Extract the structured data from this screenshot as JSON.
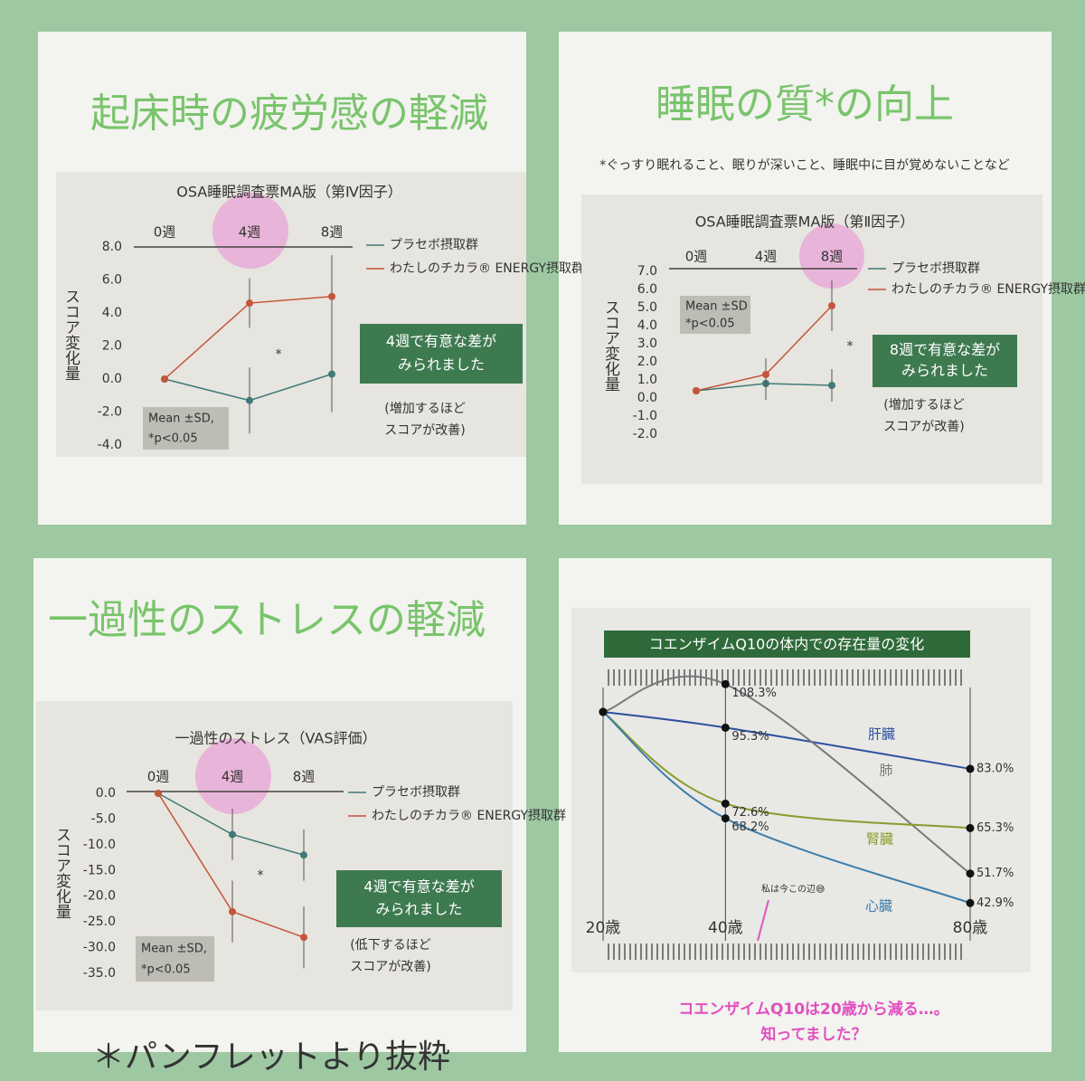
{
  "chart_data": [
    {
      "type": "line",
      "panel_title": "起床時の疲労感の軽減",
      "title": "OSA睡眠調査票MA版（第Ⅳ因子）",
      "categories": [
        "0週",
        "4週",
        "8週"
      ],
      "ylabel": "スコア変化量",
      "ylim": [
        -4,
        8
      ],
      "yticks": [
        {
          "value": 8,
          "label": "8.0"
        },
        {
          "value": 6,
          "label": "6.0"
        },
        {
          "value": 4,
          "label": "4.0"
        },
        {
          "value": 2,
          "label": "2.0"
        },
        {
          "value": 0,
          "label": "0.0"
        },
        {
          "value": -2,
          "label": "-2.0"
        },
        {
          "value": -4,
          "label": "-4.0"
        }
      ],
      "series": [
        {
          "name": "プラセボ摂取群",
          "color": "#3f7a78",
          "values": [
            0,
            -1.3,
            0.3
          ],
          "errors": [
            0,
            2,
            2.3
          ]
        },
        {
          "name": "わたしのチカラ® ENERGY摂取群",
          "color": "#c4553a",
          "values": [
            0,
            4.6,
            5
          ],
          "errors": [
            0,
            1.5,
            2.5
          ]
        }
      ],
      "significance": [
        "4週で有意な差が",
        "みられました"
      ],
      "note": [
        "(増加するほど",
        "スコアが改善)"
      ],
      "stats": [
        "Mean ±SD,",
        "*p<0.05"
      ],
      "star": "*"
    },
    {
      "type": "line",
      "panel_title": "睡眠の質*の向上",
      "subtitle": "*ぐっすり眠れること、眠りが深いこと、睡眠中に目が覚めないことなど",
      "title": "OSA睡眠調査票MA版（第Ⅱ因子）",
      "categories": [
        "0週",
        "4週",
        "8週"
      ],
      "ylabel": "スコア変化量",
      "ylim": [
        -2,
        7
      ],
      "yticks": [
        {
          "value": 7,
          "label": "7.0"
        },
        {
          "value": 6,
          "label": "6.0"
        },
        {
          "value": 5,
          "label": "5.0"
        },
        {
          "value": 4,
          "label": "4.0"
        },
        {
          "value": 3,
          "label": "3.0"
        },
        {
          "value": 2,
          "label": "2.0"
        },
        {
          "value": 1,
          "label": "1.0"
        },
        {
          "value": 0,
          "label": "0.0"
        },
        {
          "value": -1,
          "label": "-1.0"
        },
        {
          "value": -2,
          "label": "-2.0"
        }
      ],
      "series": [
        {
          "name": "プラセボ摂取群",
          "color": "#3f7a78",
          "values": [
            0.4,
            0.8,
            0.7
          ],
          "errors": [
            0,
            0.9,
            0.9
          ]
        },
        {
          "name": "わたしのチカラ® ENERGY摂取群",
          "color": "#c4553a",
          "values": [
            0.4,
            1.3,
            5.1
          ],
          "errors": [
            0,
            0.9,
            1.4
          ]
        }
      ],
      "significance": [
        "8週で有意な差が",
        "みられました"
      ],
      "note": [
        "(増加するほど",
        "スコアが改善)"
      ],
      "stats": [
        "Mean ±SD",
        "*p<0.05"
      ],
      "star": "*"
    },
    {
      "type": "line",
      "panel_title": "一過性のストレスの軽減",
      "title": "一過性のストレス（VAS評価）",
      "categories": [
        "0週",
        "4週",
        "8週"
      ],
      "ylabel": "スコア変化量",
      "ylim": [
        -35,
        0
      ],
      "yticks": [
        {
          "value": 0,
          "label": "0.0"
        },
        {
          "value": -5,
          "label": "-5.0"
        },
        {
          "value": -10,
          "label": "-10.0"
        },
        {
          "value": -15,
          "label": "-15.0"
        },
        {
          "value": -20,
          "label": "-20.0"
        },
        {
          "value": -25,
          "label": "-25.0"
        },
        {
          "value": -30,
          "label": "-30.0"
        },
        {
          "value": -35,
          "label": "-35.0"
        }
      ],
      "series": [
        {
          "name": "プラセボ摂取群",
          "color": "#3f7a78",
          "values": [
            0,
            -8,
            -12
          ],
          "errors": [
            0,
            5,
            5
          ]
        },
        {
          "name": "わたしのチカラ® ENERGY摂取群",
          "color": "#c4553a",
          "values": [
            0,
            -23,
            -28
          ],
          "errors": [
            0,
            6,
            6
          ]
        }
      ],
      "significance": [
        "4週で有意な差が",
        "みられました"
      ],
      "note": [
        "(低下するほど",
        "スコアが改善)"
      ],
      "stats": [
        "Mean ±SD,",
        "*p<0.05"
      ],
      "star": "*"
    },
    {
      "type": "curve",
      "title": "コエンザイムQ10の体内での存在量の変化",
      "x": [
        20,
        40,
        80
      ],
      "xlim": [
        20,
        80
      ],
      "ylim": [
        40,
        110
      ],
      "xticks": [
        {
          "value": 20,
          "label": "20歳"
        },
        {
          "value": 40,
          "label": "40歳"
        },
        {
          "value": 80,
          "label": "80歳"
        }
      ],
      "series": [
        {
          "name": "肝臓",
          "color": "#2d4f9e",
          "values": [
            100,
            95.3,
            83.0
          ],
          "value_labels": [
            null,
            "95.3%",
            "83.0%"
          ]
        },
        {
          "name": "肺",
          "color": "#7a7a7a",
          "values": [
            100,
            108.3,
            51.7
          ],
          "value_labels": [
            null,
            "108.3%",
            "51.7%"
          ]
        },
        {
          "name": "腎臓",
          "color": "#8c9a2c",
          "values": [
            100,
            72.6,
            65.3
          ],
          "value_labels": [
            null,
            "72.6%",
            "65.3%"
          ]
        },
        {
          "name": "心臓",
          "color": "#3b7dab",
          "values": [
            100,
            68.2,
            42.9
          ],
          "value_labels": [
            null,
            "68.2%",
            "42.9%"
          ]
        }
      ],
      "note": "私は今この辺😅",
      "caption": [
        "コエンザイムQ10は20歳から減る…。",
        "知ってました？"
      ]
    }
  ],
  "footer": "＊パンフレットより抜粋"
}
